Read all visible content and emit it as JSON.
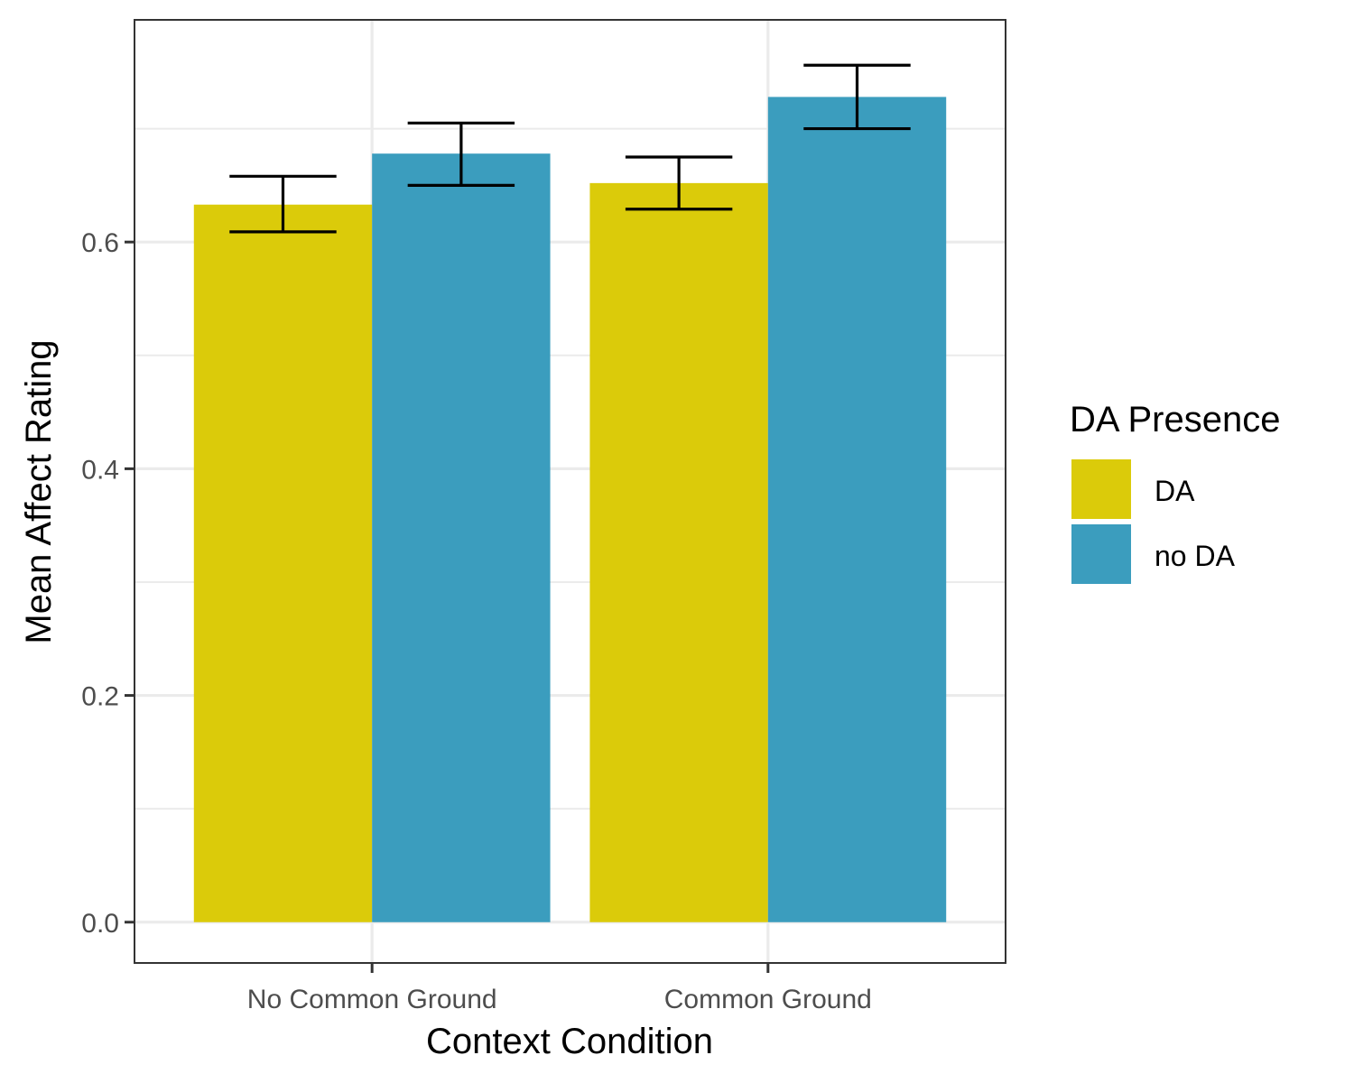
{
  "chart_data": {
    "type": "bar",
    "title": "",
    "xlabel": "Context Condition",
    "ylabel": "Mean Affect Rating",
    "categories": [
      "No Common Ground",
      "Common Ground"
    ],
    "series": [
      {
        "name": "DA",
        "color": "#DBCB0A",
        "values": [
          0.633,
          0.652
        ],
        "error_low": [
          0.609,
          0.629
        ],
        "error_high": [
          0.658,
          0.675
        ]
      },
      {
        "name": "no DA",
        "color": "#3B9DBE",
        "values": [
          0.678,
          0.728
        ],
        "error_low": [
          0.65,
          0.7
        ],
        "error_high": [
          0.705,
          0.756
        ]
      }
    ],
    "ylim": [
      -0.036,
      0.796
    ],
    "yticks": [
      "0.0",
      "0.2",
      "0.4",
      "0.6"
    ],
    "ytick_values": [
      0,
      0.2,
      0.4,
      0.6
    ],
    "grid": true,
    "legend": {
      "title": "DA Presence",
      "position": "right"
    }
  }
}
